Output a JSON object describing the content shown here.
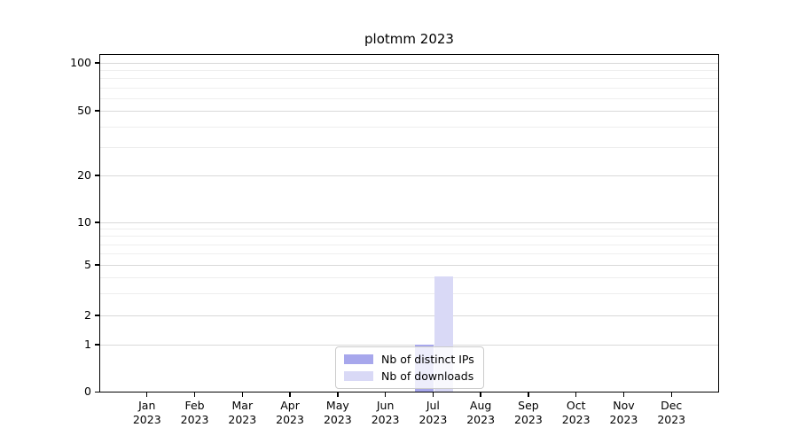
{
  "title": "plotmm 2023",
  "colors": {
    "distinct_ips": "#a7a7ec",
    "downloads": "#d9d9f6",
    "grid_major": "#d9d9d9",
    "grid_minor": "#eeeeee",
    "spine": "#000000",
    "text": "#000000",
    "legend_border": "#cccccc"
  },
  "legend": {
    "items": [
      {
        "label": "Nb of distinct IPs",
        "color": "#a7a7ec"
      },
      {
        "label": "Nb of downloads",
        "color": "#d9d9f6"
      }
    ]
  },
  "chart_data": {
    "type": "bar",
    "title": "plotmm 2023",
    "categories": [
      "Jan 2023",
      "Feb 2023",
      "Mar 2023",
      "Apr 2023",
      "May 2023",
      "Jun 2023",
      "Jul 2023",
      "Aug 2023",
      "Sep 2023",
      "Oct 2023",
      "Nov 2023",
      "Dec 2023"
    ],
    "series": [
      {
        "name": "Nb of distinct IPs",
        "color": "#a7a7ec",
        "values": [
          0,
          0,
          0,
          0,
          0,
          0,
          1,
          0,
          0,
          0,
          0,
          0
        ]
      },
      {
        "name": "Nb of downloads",
        "color": "#d9d9f6",
        "values": [
          0,
          0,
          0,
          0,
          0,
          0,
          4,
          0,
          0,
          0,
          0,
          0
        ]
      }
    ],
    "xlabel": "",
    "ylabel": "",
    "yscale": "symlog-like (linear 0-1, log above)",
    "y_major_ticks": [
      0,
      1,
      2,
      5,
      10,
      20,
      50,
      100
    ],
    "y_minor_ticks": [
      3,
      4,
      6,
      7,
      8,
      9,
      30,
      40,
      60,
      70,
      80,
      90
    ],
    "ylim": [
      0,
      115
    ],
    "grid": "horizontal major + minor",
    "legend_position": "lower center"
  }
}
